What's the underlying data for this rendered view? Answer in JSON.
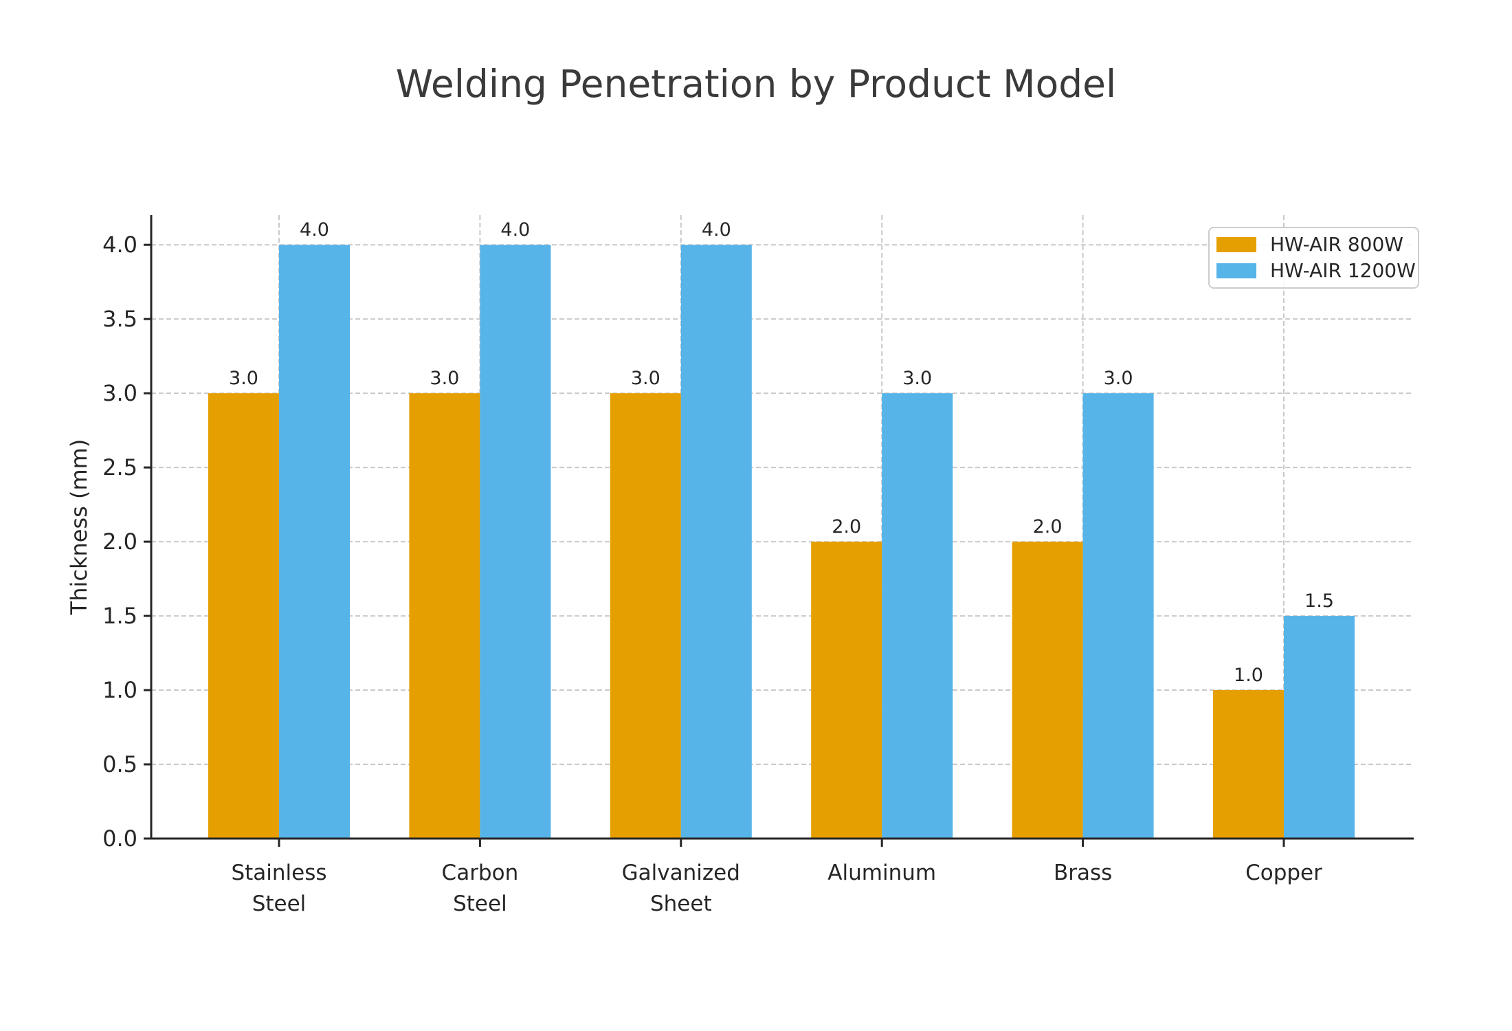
{
  "chart_data": {
    "type": "bar",
    "title": "Welding Penetration by Product Model",
    "xlabel": "",
    "ylabel": "Thickness (mm)",
    "categories": [
      "Stainless\nSteel",
      "Carbon\nSteel",
      "Galvanized\nSheet",
      "Aluminum",
      "Brass",
      "Copper"
    ],
    "series": [
      {
        "name": "HW-AIR 800W",
        "color": "#E69F00",
        "values": [
          3.0,
          3.0,
          3.0,
          2.0,
          2.0,
          1.0
        ]
      },
      {
        "name": "HW-AIR 1200W",
        "color": "#56B4E9",
        "values": [
          4.0,
          4.0,
          4.0,
          3.0,
          3.0,
          1.5
        ]
      }
    ],
    "ylim": [
      0.0,
      4.2
    ],
    "yticks": [
      0.0,
      0.5,
      1.0,
      1.5,
      2.0,
      2.5,
      3.0,
      3.5,
      4.0
    ],
    "bar_value_labels": true,
    "value_label_decimals": 1,
    "grid": true,
    "grid_style": "dashed",
    "legend_position": "upper right"
  }
}
